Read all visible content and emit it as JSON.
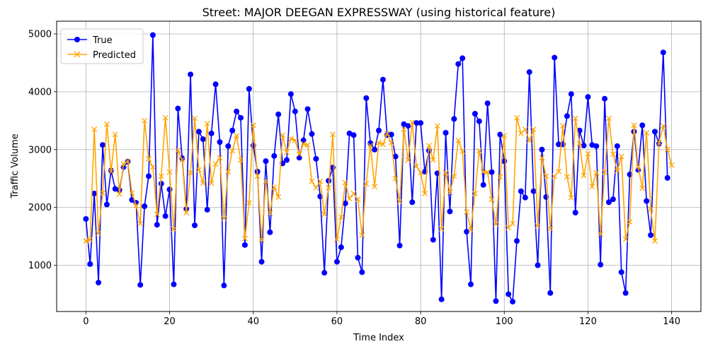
{
  "chart_data": {
    "type": "line",
    "title": "Street: MAJOR DEEGAN EXPRESSWAY (using historical feature)",
    "xlabel": "Time Index",
    "ylabel": "Traffic Volume",
    "xlim": [
      -7,
      147
    ],
    "ylim": [
      200,
      5220
    ],
    "xticks": [
      0,
      20,
      40,
      60,
      80,
      100,
      120,
      140
    ],
    "yticks": [
      1000,
      2000,
      3000,
      4000,
      5000
    ],
    "grid": true,
    "legend_position": "top-left",
    "colors": {
      "true": "#0000ff",
      "predicted": "#ffa500"
    },
    "series": [
      {
        "name": "True",
        "marker": "circle",
        "values": [
          1800,
          1020,
          2240,
          700,
          3080,
          2050,
          2640,
          2320,
          2300,
          2700,
          2790,
          2130,
          2080,
          660,
          2020,
          2540,
          4980,
          1700,
          2410,
          1850,
          2310,
          670,
          3710,
          2850,
          1970,
          4300,
          1690,
          3310,
          3180,
          1960,
          3280,
          4130,
          3130,
          650,
          3060,
          3330,
          3660,
          3550,
          1350,
          4050,
          3070,
          2620,
          1060,
          2800,
          1570,
          2890,
          3610,
          2760,
          2820,
          3960,
          3660,
          2860,
          3160,
          3700,
          3270,
          2840,
          2190,
          870,
          2460,
          2690,
          1060,
          1310,
          2070,
          3280,
          3250,
          1130,
          880,
          3890,
          3110,
          3000,
          3330,
          4210,
          3250,
          3260,
          2880,
          1340,
          3440,
          3410,
          2090,
          3460,
          3460,
          2620,
          2980,
          1440,
          2590,
          410,
          3290,
          1930,
          3530,
          4480,
          4580,
          1580,
          670,
          3620,
          3490,
          2390,
          3800,
          2610,
          380,
          3260,
          2800,
          500,
          370,
          1420,
          2280,
          2170,
          4340,
          2280,
          1000,
          3000,
          2180,
          520,
          4590,
          3090,
          3090,
          3580,
          3960,
          1910,
          3330,
          3070,
          3910,
          3080,
          3060,
          1010,
          3880,
          2090,
          2140,
          3060,
          880,
          520,
          2570,
          3310,
          2650,
          3420,
          2110,
          1520,
          3310,
          3100,
          4680,
          2510
        ]
      },
      {
        "name": "Predicted",
        "marker": "x",
        "values": [
          1420,
          1440,
          3350,
          1550,
          2250,
          3440,
          2620,
          3260,
          2230,
          2750,
          2800,
          2250,
          2030,
          1720,
          3500,
          2840,
          2700,
          1880,
          2540,
          3550,
          2610,
          1620,
          2990,
          2820,
          1910,
          2600,
          3540,
          2650,
          2420,
          3450,
          2420,
          2750,
          2860,
          1810,
          2620,
          2980,
          3240,
          2820,
          1460,
          2080,
          3420,
          2540,
          1440,
          2450,
          1900,
          2350,
          2180,
          3250,
          2950,
          3190,
          3160,
          2920,
          3100,
          3080,
          2450,
          2340,
          2450,
          1880,
          2340,
          3260,
          1450,
          1830,
          2430,
          2150,
          2240,
          2140,
          1520,
          2410,
          3070,
          2360,
          3120,
          3090,
          3280,
          3120,
          2500,
          2100,
          3350,
          2820,
          3470,
          2710,
          2600,
          2240,
          3070,
          2820,
          3410,
          1630,
          2600,
          2260,
          2540,
          3160,
          2970,
          1920,
          1610,
          2240,
          2980,
          2610,
          2610,
          2140,
          1710,
          2530,
          3240,
          1650,
          1720,
          3550,
          3280,
          3350,
          3150,
          3350,
          1680,
          2860,
          2540,
          1630,
          2540,
          2620,
          3410,
          2530,
          2170,
          3540,
          3100,
          2550,
          2930,
          2360,
          2600,
          1540,
          2610,
          3540,
          2920,
          2630,
          2880,
          1450,
          1750,
          3420,
          2700,
          2330,
          3290,
          1970,
          1420,
          3120,
          3410,
          3000,
          2730
        ]
      }
    ]
  }
}
